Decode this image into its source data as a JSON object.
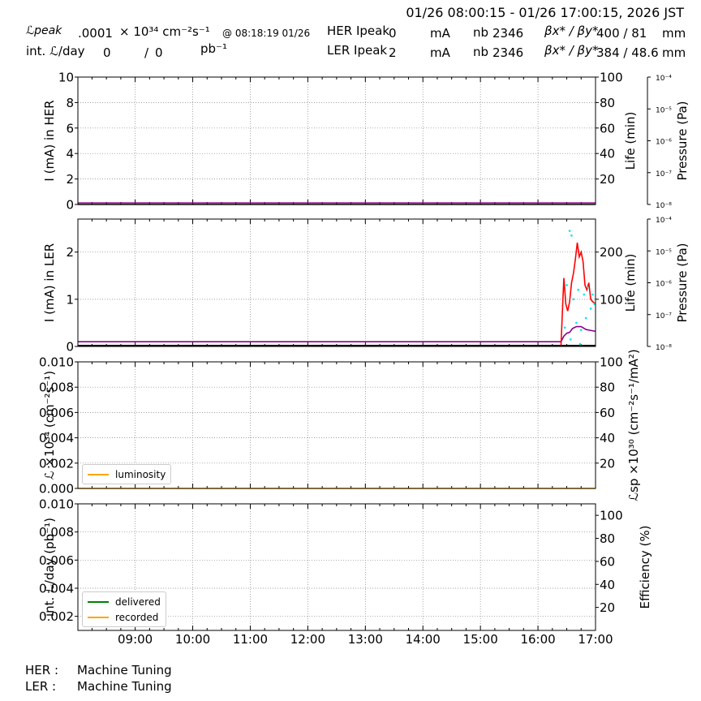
{
  "header": {
    "time_range": "01/26 08:00:15 - 01/26 17:00:15, 2026 JST",
    "lpeak_label": "ℒpeak",
    "lpeak_value": ".0001",
    "lpeak_unit": "× 10³⁴ cm⁻²s⁻¹",
    "lpeak_time": "@ 08:18:19 01/26",
    "intl_label": "int. ℒ/day",
    "intl_value1": "0",
    "intl_sep": "/",
    "intl_value2": "0",
    "intl_unit": "pb⁻¹",
    "her_label": "HER Ipeak",
    "her_value": "0",
    "ler_label": "LER Ipeak",
    "ler_value": "2",
    "current_unit": "mA",
    "nb_label": "nb",
    "her_nb": "2346",
    "ler_nb": "2346",
    "beta_label": "βx* / βy*",
    "her_beta": "400  / 81",
    "ler_beta": "384  / 48.6",
    "beta_unit": "mm"
  },
  "status": {
    "her_label": "HER :",
    "her_value": "Machine Tuning",
    "ler_label": "LER :",
    "ler_value": "Machine Tuning"
  },
  "legends": {
    "luminosity": "luminosity",
    "delivered": "delivered",
    "recorded": "recorded"
  },
  "colors": {
    "her_current": "#000000",
    "purple": "#8b008b",
    "ler_life": "#ff0000",
    "ler_pressure": "#00e5ee",
    "luminosity": "#ffa500",
    "delivered": "#008000",
    "recorded": "#ffa500",
    "grid": "#808080"
  },
  "chart_data": [
    {
      "type": "line",
      "name": "HER",
      "ylabel": "I (mA) in HER",
      "ylim": [
        0,
        10
      ],
      "yticks": [
        "0",
        "2",
        "4",
        "6",
        "8",
        "10"
      ],
      "y2label": "Life (min)",
      "y2ticks": [
        "20",
        "40",
        "60",
        "80",
        "100"
      ],
      "y2lim": [
        0,
        100
      ],
      "y3label": "Pressure (Pa)",
      "y3ticks": [
        "10⁻⁸",
        "10⁻⁷",
        "10⁻⁶",
        "10⁻⁵",
        "10⁻⁴"
      ],
      "xlim": [
        "08:00",
        "17:00"
      ],
      "series": [
        {
          "color": "#000000",
          "x": [
            "08:00",
            "17:00"
          ],
          "y": [
            0,
            0
          ]
        },
        {
          "color": "#8b008b",
          "x": [
            "08:00",
            "17:00"
          ],
          "y": [
            0.12,
            0.12
          ]
        }
      ]
    },
    {
      "type": "line",
      "name": "LER",
      "ylabel": "I (mA) in LER",
      "ylim": [
        0,
        2.7
      ],
      "yticks": [
        "0",
        "1",
        "2"
      ],
      "y2label": "Life (min)",
      "y2ticks": [
        "100",
        "200"
      ],
      "y2lim": [
        0,
        270
      ],
      "y3label": "Pressure (Pa)",
      "y3ticks": [
        "10⁻⁸",
        "10⁻⁷",
        "10⁻⁶",
        "10⁻⁵",
        "10⁻⁴"
      ],
      "series": [
        {
          "color": "#000000",
          "x": [
            "08:00",
            "17:00"
          ],
          "y": [
            0.02,
            0.02
          ]
        },
        {
          "color": "#8b008b",
          "x": [
            "08:00",
            "16:20",
            "16:24",
            "16:27",
            "16:30",
            "16:33",
            "16:36",
            "16:40",
            "16:45",
            "16:50",
            "16:55",
            "17:00"
          ],
          "y": [
            0.1,
            0.1,
            0.1,
            0.22,
            0.28,
            0.3,
            0.38,
            0.42,
            0.42,
            0.36,
            0.34,
            0.32
          ]
        },
        {
          "color": "#ff0000",
          "x": [
            "16:24",
            "16:26",
            "16:27",
            "16:29",
            "16:31",
            "16:33",
            "16:35",
            "16:37",
            "16:39",
            "16:41",
            "16:43",
            "16:45",
            "16:47",
            "16:49",
            "16:51",
            "16:53",
            "16:55",
            "16:57",
            "17:00"
          ],
          "y": [
            0.02,
            1.0,
            1.45,
            0.9,
            0.75,
            0.95,
            1.35,
            1.55,
            1.85,
            2.2,
            1.9,
            2.0,
            1.8,
            1.3,
            1.2,
            1.35,
            1.0,
            0.95,
            0.9
          ]
        },
        {
          "color": "#00e5ee",
          "points": [
            [
              "16:30",
              1.3
            ],
            [
              "16:33",
              2.45
            ],
            [
              "16:35",
              2.35
            ],
            [
              "16:37",
              1.0
            ],
            [
              "16:40",
              0.5
            ],
            [
              "16:42",
              1.2
            ],
            [
              "16:45",
              0.35
            ],
            [
              "16:48",
              1.1
            ],
            [
              "16:50",
              0.6
            ],
            [
              "16:52",
              1.25
            ],
            [
              "16:55",
              0.8
            ],
            [
              "16:57",
              1.1
            ],
            [
              "16:59",
              0.9
            ],
            [
              "16:28",
              0.4
            ],
            [
              "16:34",
              0.15
            ],
            [
              "16:44",
              0.05
            ]
          ]
        }
      ]
    },
    {
      "type": "line",
      "name": "Luminosity",
      "ylabel": "ℒ ×10³⁴ (cm⁻²s⁻¹)",
      "ylim": [
        0,
        0.01
      ],
      "yticks": [
        "0.000",
        "0.002",
        "0.004",
        "0.006",
        "0.008",
        "0.010"
      ],
      "y2label": "ℒsp ×10³⁰ (cm⁻²s⁻¹/mA²)",
      "y2ticks": [
        "20",
        "40",
        "60",
        "80",
        "100"
      ],
      "y2lim": [
        0,
        100
      ],
      "series": [
        {
          "name": "luminosity",
          "color": "#ffa500",
          "x": [
            "08:00",
            "17:00"
          ],
          "y": [
            0,
            0
          ]
        }
      ]
    },
    {
      "type": "line",
      "name": "Integrated",
      "ylabel": "int. ℒ/day (pb⁻¹)",
      "ylim": [
        0.001,
        0.01
      ],
      "yticks": [
        "0.002",
        "0.004",
        "0.006",
        "0.008",
        "0.010"
      ],
      "y2label": "Efficiency (%)",
      "y2ticks": [
        "20",
        "40",
        "60",
        "80",
        "100"
      ],
      "y2lim": [
        0,
        110
      ],
      "xticks": [
        "09:00",
        "10:00",
        "11:00",
        "12:00",
        "13:00",
        "14:00",
        "15:00",
        "16:00",
        "17:00"
      ],
      "series": [
        {
          "name": "delivered",
          "color": "#008000",
          "x": [],
          "y": []
        },
        {
          "name": "recorded",
          "color": "#ffa500",
          "x": [],
          "y": []
        }
      ]
    }
  ]
}
